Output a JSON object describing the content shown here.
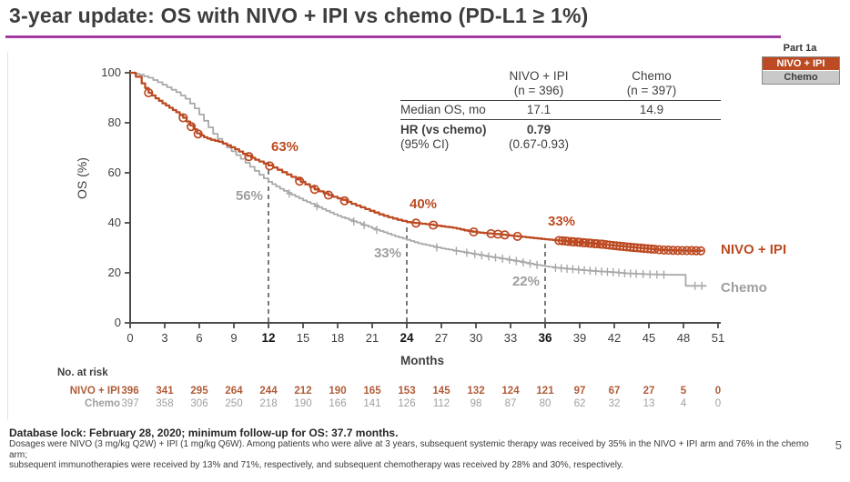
{
  "slide": {
    "title": "3-year update: OS with NIVO + IPI vs chemo (PD-L1 ≥ 1%)",
    "page_number": "5",
    "colors": {
      "nivo": "#bc4a22",
      "chemo_curve": "#a9a9a9",
      "chemo_text": "#9e9e9e",
      "accent_rule": "#a23b9f",
      "axis": "#4a4a4a",
      "dashed": "#595959",
      "risk_nivo": "#b15c38",
      "risk_chemo": "#9f9f9f"
    }
  },
  "legend": {
    "part_label": "Part 1a",
    "items": [
      {
        "label": "NIVO + IPI",
        "bg": "#bc4a22",
        "fg": "#ffffff"
      },
      {
        "label": "Chemo",
        "bg": "#c9c9c9",
        "fg": "#3d3d3d"
      }
    ]
  },
  "stats_table": {
    "col_headers": [
      {
        "line1": "NIVO + IPI",
        "line2": "(n = 396)"
      },
      {
        "line1": "Chemo",
        "line2": "(n = 397)"
      }
    ],
    "median_row": {
      "label": "Median OS, mo",
      "nivo": "17.1",
      "chemo": "14.9"
    },
    "hr_row": {
      "label_line1": "HR (vs chemo)",
      "label_line2": "(95% CI)",
      "nivo_line1": "0.79",
      "nivo_line2": "(0.67-0.93)",
      "chemo": ""
    }
  },
  "chart_data": {
    "type": "line",
    "subtype": "kaplan-meier",
    "title": "OS with NIVO + IPI vs chemo (PD-L1 ≥ 1%)",
    "xlabel": "Months",
    "ylabel": "OS (%)",
    "xlim": [
      0,
      51
    ],
    "ylim": [
      0,
      100
    ],
    "x_ticks": [
      0,
      3,
      6,
      9,
      12,
      15,
      18,
      21,
      24,
      27,
      30,
      33,
      36,
      39,
      42,
      45,
      48,
      51
    ],
    "bold_x_ticks": [
      12,
      24,
      36
    ],
    "y_ticks": [
      0,
      20,
      40,
      60,
      80,
      100
    ],
    "grid": false,
    "landmarks": [
      {
        "month": 12,
        "nivo": 63,
        "chemo": 56,
        "nivo_label": "63%",
        "chemo_label": "56%"
      },
      {
        "month": 24,
        "nivo": 40,
        "chemo": 33,
        "nivo_label": "40%",
        "chemo_label": "33%"
      },
      {
        "month": 36,
        "nivo": 33,
        "chemo": 22,
        "nivo_label": "33%",
        "chemo_label": "22%"
      }
    ],
    "series": [
      {
        "name": "Chemo",
        "color": "#a9a9a9",
        "marker": "plus",
        "points": [
          [
            0,
            100
          ],
          [
            0.8,
            99.2
          ],
          [
            1.6,
            98
          ],
          [
            2.4,
            96.2
          ],
          [
            3.2,
            94.2
          ],
          [
            4,
            92.2
          ],
          [
            4.8,
            89.6
          ],
          [
            5.6,
            85.8
          ],
          [
            6.4,
            80.8
          ],
          [
            7.2,
            75.6
          ],
          [
            8,
            71.6
          ],
          [
            8.8,
            68.6
          ],
          [
            9.6,
            65.6
          ],
          [
            10.4,
            62.4
          ],
          [
            11.2,
            59.2
          ],
          [
            12,
            56.4
          ],
          [
            13,
            53.6
          ],
          [
            14,
            51.2
          ],
          [
            15,
            49
          ],
          [
            16,
            47
          ],
          [
            17,
            44.8
          ],
          [
            18,
            42.8
          ],
          [
            19,
            41.2
          ],
          [
            20,
            39.6
          ],
          [
            21,
            37.8
          ],
          [
            22,
            36.2
          ],
          [
            23,
            34.6
          ],
          [
            24,
            33.2
          ],
          [
            25,
            31.8
          ],
          [
            26,
            30.8
          ],
          [
            27,
            29.8
          ],
          [
            28,
            29
          ],
          [
            29,
            28.2
          ],
          [
            30,
            27.4
          ],
          [
            31,
            26.6
          ],
          [
            32,
            25.9
          ],
          [
            33,
            25.1
          ],
          [
            34,
            24.3
          ],
          [
            35,
            23.4
          ],
          [
            36,
            22.6
          ],
          [
            37,
            22
          ],
          [
            38,
            21.6
          ],
          [
            39,
            21.2
          ],
          [
            40,
            20.8
          ],
          [
            41,
            20.5
          ],
          [
            42,
            20.2
          ],
          [
            43,
            19.8
          ],
          [
            44,
            19.6
          ],
          [
            45,
            19.4
          ],
          [
            46,
            19.3
          ],
          [
            47,
            19.2
          ],
          [
            48.2,
            19.2
          ],
          [
            48.2,
            14.8
          ],
          [
            50,
            14.8
          ]
        ],
        "censor_months": [
          13.8,
          16.2,
          19.4,
          20.3,
          21.4,
          26.6,
          28.3,
          29.2,
          29.9,
          30.5,
          31.1,
          31.7,
          32.3,
          32.9,
          33.5,
          34.1,
          34.7,
          35.3,
          36.9,
          37.4,
          37.9,
          38.4,
          38.9,
          39.4,
          39.9,
          40.4,
          40.9,
          41.4,
          41.9,
          42.4,
          42.9,
          43.4,
          43.9,
          44.5,
          45.1,
          45.7,
          46.3,
          49,
          49.6
        ]
      },
      {
        "name": "NIVO + IPI",
        "color": "#bc4a22",
        "marker": "circle",
        "points": [
          [
            0,
            100
          ],
          [
            0.5,
            98.4
          ],
          [
            1,
            95.8
          ],
          [
            1.6,
            92
          ],
          [
            2.2,
            89.8
          ],
          [
            2.8,
            87.8
          ],
          [
            3.4,
            86
          ],
          [
            4,
            84.2
          ],
          [
            4.6,
            82
          ],
          [
            5.2,
            79
          ],
          [
            5.8,
            75.8
          ],
          [
            6.4,
            74.2
          ],
          [
            7,
            73.2
          ],
          [
            7.7,
            72.4
          ],
          [
            8.4,
            71
          ],
          [
            9.1,
            69.4
          ],
          [
            9.8,
            67.6
          ],
          [
            10.5,
            66
          ],
          [
            11.2,
            64.5
          ],
          [
            12,
            63
          ],
          [
            12.8,
            61.2
          ],
          [
            13.6,
            59.3
          ],
          [
            14.4,
            57.4
          ],
          [
            15.2,
            55.4
          ],
          [
            16,
            53.4
          ],
          [
            16.8,
            51.8
          ],
          [
            17.6,
            50.4
          ],
          [
            18.4,
            49.2
          ],
          [
            19.2,
            47.6
          ],
          [
            20,
            46.2
          ],
          [
            20.8,
            44.8
          ],
          [
            21.6,
            43.4
          ],
          [
            22.4,
            42.2
          ],
          [
            23.2,
            41.2
          ],
          [
            24,
            40.3
          ],
          [
            25,
            39.8
          ],
          [
            26,
            39.3
          ],
          [
            27,
            38.6
          ],
          [
            28,
            38
          ],
          [
            29,
            37
          ],
          [
            30,
            36.2
          ],
          [
            31,
            35.8
          ],
          [
            32,
            35.4
          ],
          [
            33,
            34.9
          ],
          [
            34,
            34.4
          ],
          [
            35,
            33.9
          ],
          [
            36,
            33.4
          ],
          [
            37,
            33
          ],
          [
            38,
            32.6
          ],
          [
            39,
            32.2
          ],
          [
            40,
            31.8
          ],
          [
            41,
            31.4
          ],
          [
            42,
            30.9
          ],
          [
            43,
            30.4
          ],
          [
            44,
            30
          ],
          [
            45,
            29.6
          ],
          [
            46,
            29.2
          ],
          [
            47,
            29
          ],
          [
            48,
            28.9
          ],
          [
            49.7,
            28.8
          ]
        ],
        "censor_months": [
          1.6,
          4.6,
          5.3,
          5.9,
          10.3,
          12.1,
          14.7,
          16,
          17.2,
          18.6,
          24.8,
          26.3,
          29.8,
          31.3,
          31.9,
          32.5,
          33.6,
          37.2,
          37.5,
          37.8,
          38,
          38.3,
          38.5,
          38.8,
          39,
          39.3,
          39.5,
          39.8,
          40,
          40.3,
          40.5,
          40.8,
          41,
          41.3,
          41.6,
          41.9,
          42.2,
          42.5,
          42.8,
          43.1,
          43.4,
          43.7,
          44,
          44.3,
          44.6,
          44.9,
          45.2,
          45.5,
          45.9,
          46.3,
          46.7,
          47.1,
          47.5,
          47.9,
          48.3,
          48.7,
          49.1,
          49.5
        ]
      }
    ]
  },
  "risk_table": {
    "title": "No. at risk",
    "months": [
      0,
      3,
      6,
      9,
      12,
      15,
      18,
      21,
      24,
      27,
      30,
      33,
      36,
      39,
      42,
      45,
      48,
      51
    ],
    "rows": [
      {
        "label": "NIVO + IPI",
        "values": [
          396,
          341,
          295,
          264,
          244,
          212,
          190,
          165,
          153,
          145,
          132,
          124,
          121,
          97,
          67,
          27,
          5,
          0
        ]
      },
      {
        "label": "Chemo",
        "values": [
          397,
          358,
          306,
          250,
          218,
          190,
          166,
          141,
          126,
          112,
          98,
          87,
          80,
          62,
          32,
          13,
          4,
          0
        ]
      }
    ]
  },
  "footnotes": {
    "bold_line": "Database lock: February 28, 2020; minimum follow-up for OS: 37.7 months.",
    "small_lines": [
      "Dosages were NIVO (3 mg/kg Q2W) + IPI (1 mg/kg Q6W). Among patients who were alive at 3 years, subsequent systemic therapy was received by 35% in the NIVO + IPI arm and 76% in the chemo arm;",
      "subsequent immunotherapies were received by 13% and 71%, respectively, and subsequent chemotherapy was received by 28% and 30%, respectively."
    ]
  }
}
